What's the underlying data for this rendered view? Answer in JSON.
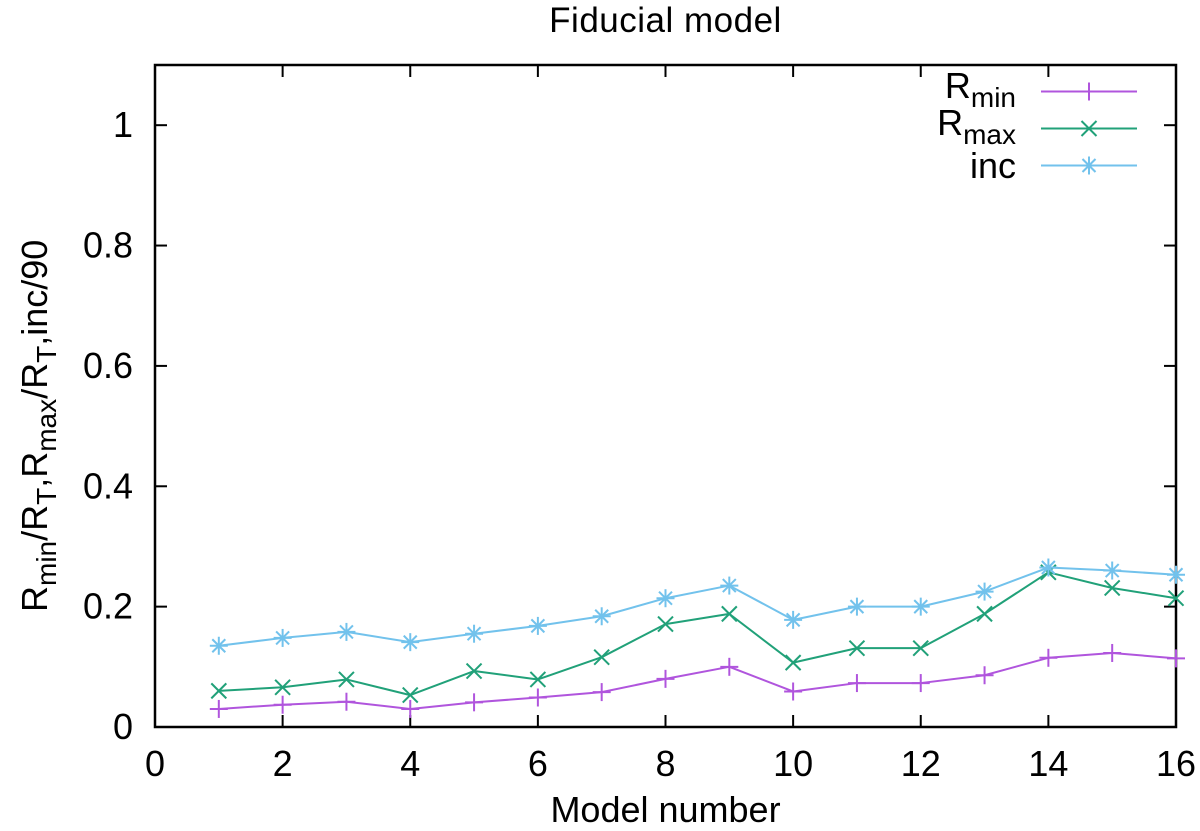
{
  "chart_data": {
    "type": "line",
    "title": "Fiducial model",
    "xlabel": "Model number",
    "ylabel": "R_min/R_T,R_max/R_T,inc/90",
    "ylabel_segments": [
      {
        "t": "R",
        "sub": false
      },
      {
        "t": "min",
        "sub": true
      },
      {
        "t": "/R",
        "sub": false
      },
      {
        "t": "T",
        "sub": true
      },
      {
        "t": ",R",
        "sub": false
      },
      {
        "t": "max",
        "sub": true
      },
      {
        "t": "/R",
        "sub": false
      },
      {
        "t": "T",
        "sub": true
      },
      {
        "t": ",inc/90",
        "sub": false
      }
    ],
    "xlim": [
      0,
      16
    ],
    "ylim": [
      0,
      1.1
    ],
    "xticks": [
      0,
      2,
      4,
      6,
      8,
      10,
      12,
      14,
      16
    ],
    "yticks": [
      {
        "v": 0,
        "label": "0"
      },
      {
        "v": 0.2,
        "label": "0.2"
      },
      {
        "v": 0.4,
        "label": "0.4"
      },
      {
        "v": 0.6,
        "label": "0.6"
      },
      {
        "v": 0.8,
        "label": "0.8"
      },
      {
        "v": 1,
        "label": "1"
      }
    ],
    "grid": false,
    "legend_position": "top-right-inside",
    "border_color": "#000000",
    "x": [
      1,
      2,
      3,
      4,
      5,
      6,
      7,
      8,
      9,
      10,
      11,
      12,
      13,
      14,
      15,
      16
    ],
    "series": [
      {
        "name": "R_min",
        "label_base": "R",
        "label_sub": "min",
        "color": "#b055dd",
        "marker": "plus",
        "values": [
          0.03,
          0.037,
          0.042,
          0.03,
          0.041,
          0.049,
          0.058,
          0.08,
          0.1,
          0.059,
          0.073,
          0.073,
          0.086,
          0.115,
          0.123,
          0.114
        ]
      },
      {
        "name": "R_max",
        "label_base": "R",
        "label_sub": "max",
        "color": "#21a179",
        "marker": "cross",
        "values": [
          0.06,
          0.066,
          0.079,
          0.053,
          0.093,
          0.079,
          0.116,
          0.171,
          0.188,
          0.107,
          0.131,
          0.131,
          0.188,
          0.257,
          0.231,
          0.214
        ]
      },
      {
        "name": "inc",
        "label_base": "inc",
        "label_sub": "",
        "color": "#72c2ec",
        "marker": "asterisk",
        "values": [
          0.135,
          0.148,
          0.158,
          0.141,
          0.155,
          0.168,
          0.184,
          0.214,
          0.235,
          0.178,
          0.2,
          0.2,
          0.225,
          0.265,
          0.26,
          0.253
        ]
      }
    ]
  }
}
